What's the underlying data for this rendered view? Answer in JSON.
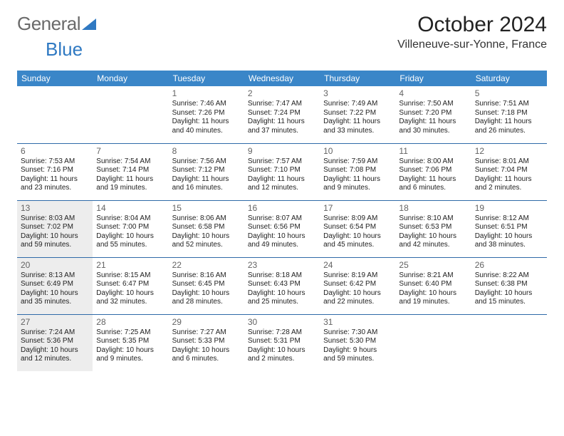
{
  "brand": {
    "part1": "General",
    "part2": "Blue"
  },
  "title": "October 2024",
  "location": "Villeneuve-sur-Yonne, France",
  "colors": {
    "header_bg": "#3a86c8",
    "row_border": "#2f6aa8",
    "shade_bg": "#ededed",
    "daynum": "#636363",
    "brand_gray": "#6a6a6a",
    "brand_blue": "#2f79c2"
  },
  "day_headers": [
    "Sunday",
    "Monday",
    "Tuesday",
    "Wednesday",
    "Thursday",
    "Friday",
    "Saturday"
  ],
  "weeks": [
    [
      {
        "empty": true
      },
      {
        "empty": true
      },
      {
        "n": "1",
        "sr": "Sunrise: 7:46 AM",
        "ss": "Sunset: 7:26 PM",
        "d1": "Daylight: 11 hours",
        "d2": "and 40 minutes."
      },
      {
        "n": "2",
        "sr": "Sunrise: 7:47 AM",
        "ss": "Sunset: 7:24 PM",
        "d1": "Daylight: 11 hours",
        "d2": "and 37 minutes."
      },
      {
        "n": "3",
        "sr": "Sunrise: 7:49 AM",
        "ss": "Sunset: 7:22 PM",
        "d1": "Daylight: 11 hours",
        "d2": "and 33 minutes."
      },
      {
        "n": "4",
        "sr": "Sunrise: 7:50 AM",
        "ss": "Sunset: 7:20 PM",
        "d1": "Daylight: 11 hours",
        "d2": "and 30 minutes."
      },
      {
        "n": "5",
        "sr": "Sunrise: 7:51 AM",
        "ss": "Sunset: 7:18 PM",
        "d1": "Daylight: 11 hours",
        "d2": "and 26 minutes."
      }
    ],
    [
      {
        "n": "6",
        "sr": "Sunrise: 7:53 AM",
        "ss": "Sunset: 7:16 PM",
        "d1": "Daylight: 11 hours",
        "d2": "and 23 minutes."
      },
      {
        "n": "7",
        "sr": "Sunrise: 7:54 AM",
        "ss": "Sunset: 7:14 PM",
        "d1": "Daylight: 11 hours",
        "d2": "and 19 minutes."
      },
      {
        "n": "8",
        "sr": "Sunrise: 7:56 AM",
        "ss": "Sunset: 7:12 PM",
        "d1": "Daylight: 11 hours",
        "d2": "and 16 minutes."
      },
      {
        "n": "9",
        "sr": "Sunrise: 7:57 AM",
        "ss": "Sunset: 7:10 PM",
        "d1": "Daylight: 11 hours",
        "d2": "and 12 minutes."
      },
      {
        "n": "10",
        "sr": "Sunrise: 7:59 AM",
        "ss": "Sunset: 7:08 PM",
        "d1": "Daylight: 11 hours",
        "d2": "and 9 minutes."
      },
      {
        "n": "11",
        "sr": "Sunrise: 8:00 AM",
        "ss": "Sunset: 7:06 PM",
        "d1": "Daylight: 11 hours",
        "d2": "and 6 minutes."
      },
      {
        "n": "12",
        "sr": "Sunrise: 8:01 AM",
        "ss": "Sunset: 7:04 PM",
        "d1": "Daylight: 11 hours",
        "d2": "and 2 minutes."
      }
    ],
    [
      {
        "n": "13",
        "sr": "Sunrise: 8:03 AM",
        "ss": "Sunset: 7:02 PM",
        "d1": "Daylight: 10 hours",
        "d2": "and 59 minutes.",
        "shade": true
      },
      {
        "n": "14",
        "sr": "Sunrise: 8:04 AM",
        "ss": "Sunset: 7:00 PM",
        "d1": "Daylight: 10 hours",
        "d2": "and 55 minutes."
      },
      {
        "n": "15",
        "sr": "Sunrise: 8:06 AM",
        "ss": "Sunset: 6:58 PM",
        "d1": "Daylight: 10 hours",
        "d2": "and 52 minutes."
      },
      {
        "n": "16",
        "sr": "Sunrise: 8:07 AM",
        "ss": "Sunset: 6:56 PM",
        "d1": "Daylight: 10 hours",
        "d2": "and 49 minutes."
      },
      {
        "n": "17",
        "sr": "Sunrise: 8:09 AM",
        "ss": "Sunset: 6:54 PM",
        "d1": "Daylight: 10 hours",
        "d2": "and 45 minutes."
      },
      {
        "n": "18",
        "sr": "Sunrise: 8:10 AM",
        "ss": "Sunset: 6:53 PM",
        "d1": "Daylight: 10 hours",
        "d2": "and 42 minutes."
      },
      {
        "n": "19",
        "sr": "Sunrise: 8:12 AM",
        "ss": "Sunset: 6:51 PM",
        "d1": "Daylight: 10 hours",
        "d2": "and 38 minutes."
      }
    ],
    [
      {
        "n": "20",
        "sr": "Sunrise: 8:13 AM",
        "ss": "Sunset: 6:49 PM",
        "d1": "Daylight: 10 hours",
        "d2": "and 35 minutes.",
        "shade": true
      },
      {
        "n": "21",
        "sr": "Sunrise: 8:15 AM",
        "ss": "Sunset: 6:47 PM",
        "d1": "Daylight: 10 hours",
        "d2": "and 32 minutes."
      },
      {
        "n": "22",
        "sr": "Sunrise: 8:16 AM",
        "ss": "Sunset: 6:45 PM",
        "d1": "Daylight: 10 hours",
        "d2": "and 28 minutes."
      },
      {
        "n": "23",
        "sr": "Sunrise: 8:18 AM",
        "ss": "Sunset: 6:43 PM",
        "d1": "Daylight: 10 hours",
        "d2": "and 25 minutes."
      },
      {
        "n": "24",
        "sr": "Sunrise: 8:19 AM",
        "ss": "Sunset: 6:42 PM",
        "d1": "Daylight: 10 hours",
        "d2": "and 22 minutes."
      },
      {
        "n": "25",
        "sr": "Sunrise: 8:21 AM",
        "ss": "Sunset: 6:40 PM",
        "d1": "Daylight: 10 hours",
        "d2": "and 19 minutes."
      },
      {
        "n": "26",
        "sr": "Sunrise: 8:22 AM",
        "ss": "Sunset: 6:38 PM",
        "d1": "Daylight: 10 hours",
        "d2": "and 15 minutes."
      }
    ],
    [
      {
        "n": "27",
        "sr": "Sunrise: 7:24 AM",
        "ss": "Sunset: 5:36 PM",
        "d1": "Daylight: 10 hours",
        "d2": "and 12 minutes.",
        "shade": true
      },
      {
        "n": "28",
        "sr": "Sunrise: 7:25 AM",
        "ss": "Sunset: 5:35 PM",
        "d1": "Daylight: 10 hours",
        "d2": "and 9 minutes."
      },
      {
        "n": "29",
        "sr": "Sunrise: 7:27 AM",
        "ss": "Sunset: 5:33 PM",
        "d1": "Daylight: 10 hours",
        "d2": "and 6 minutes."
      },
      {
        "n": "30",
        "sr": "Sunrise: 7:28 AM",
        "ss": "Sunset: 5:31 PM",
        "d1": "Daylight: 10 hours",
        "d2": "and 2 minutes."
      },
      {
        "n": "31",
        "sr": "Sunrise: 7:30 AM",
        "ss": "Sunset: 5:30 PM",
        "d1": "Daylight: 9 hours",
        "d2": "and 59 minutes."
      },
      {
        "empty": true
      },
      {
        "empty": true
      }
    ]
  ]
}
